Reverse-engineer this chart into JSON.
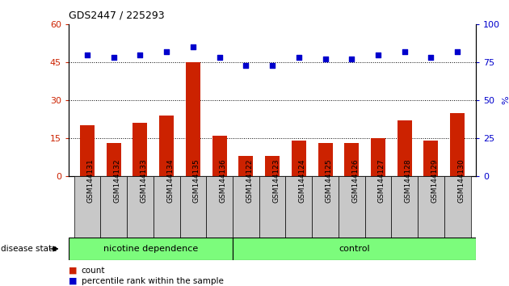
{
  "title": "GDS2447 / 225293",
  "samples": [
    "GSM144131",
    "GSM144132",
    "GSM144133",
    "GSM144134",
    "GSM144135",
    "GSM144136",
    "GSM144122",
    "GSM144123",
    "GSM144124",
    "GSM144125",
    "GSM144126",
    "GSM144127",
    "GSM144128",
    "GSM144129",
    "GSM144130"
  ],
  "counts": [
    20,
    13,
    21,
    24,
    45,
    16,
    8,
    8,
    14,
    13,
    13,
    15,
    22,
    14,
    25
  ],
  "percentiles": [
    80,
    78,
    80,
    82,
    85,
    78,
    73,
    73,
    78,
    77,
    77,
    80,
    82,
    78,
    82
  ],
  "bar_color": "#CC2200",
  "dot_color": "#0000CC",
  "left_ylim": [
    0,
    60
  ],
  "right_ylim": [
    0,
    100
  ],
  "left_yticks": [
    0,
    15,
    30,
    45,
    60
  ],
  "right_yticks": [
    0,
    25,
    50,
    75,
    100
  ],
  "right_ylabel": "%",
  "grid_lines": [
    15,
    30,
    45
  ],
  "xtick_bg": "#C8C8C8",
  "group_color": "#7CFC7C",
  "nd_label": "nicotine dependence",
  "ctrl_label": "control",
  "nd_count": 6,
  "disease_state_label": "disease state",
  "legend_count": "count",
  "legend_pct": "percentile rank within the sample"
}
